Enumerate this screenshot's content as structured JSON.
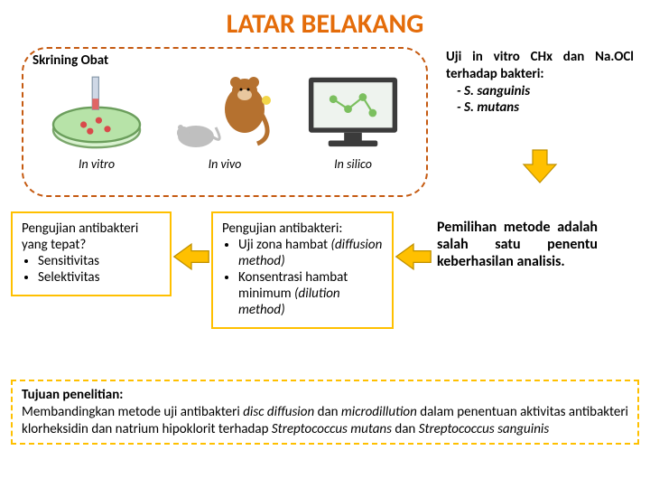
{
  "colors": {
    "title": "#e46c0a",
    "dash_border": "#c55a11",
    "yellow_border": "#ffc000",
    "arrow_fill": "#ffc000",
    "arrow_stroke": "#bf9000",
    "text": "#000000",
    "bg": "#ffffff"
  },
  "fonts": {
    "title_size": 30,
    "body_size": 15,
    "caption_size": 14
  },
  "title": "LATAR BELAKANG",
  "screening": {
    "label": "Skrining Obat",
    "items": [
      {
        "caption": "In vitro",
        "icon": "petri"
      },
      {
        "caption": "In vivo",
        "icon": "animals"
      },
      {
        "caption": "In silico",
        "icon": "computer"
      }
    ]
  },
  "uji": {
    "heading_pre": "Uji in vitro CHx dan Na.OCl terhadap bakteri:",
    "species": [
      "S. sanguinis",
      "S. mutans"
    ]
  },
  "box_left": {
    "heading": "Pengujian antibakteri yang tepat?",
    "bullets": [
      "Sensitivitas",
      "Selektivitas"
    ]
  },
  "box_mid": {
    "heading": "Pengujian antibakteri:",
    "bullets": [
      {
        "text": "Uji zona hambat",
        "paren": "(diffusion method)"
      },
      {
        "text": "Konsentrasi hambat minimum",
        "paren": "(dilution method)"
      }
    ]
  },
  "box_right": {
    "line1": "Pemilihan metode adalah salah satu ",
    "bold": "penentu keberhasilan ",
    "line2": "analisis."
  },
  "bottom": {
    "heading": "Tujuan penelitian:",
    "body_parts": [
      {
        "t": "Membandingkan metode uji antibakteri "
      },
      {
        "t": "disc diffusion",
        "i": true
      },
      {
        "t": " dan "
      },
      {
        "t": "microdillution",
        "i": true
      },
      {
        "t": " dalam penentuan aktivitas antibakteri klorheksidin dan natrium hipoklorit terhadap "
      },
      {
        "t": "Streptococcus mutans",
        "i": true
      },
      {
        "t": " dan "
      },
      {
        "t": "Streptococcus sanguinis",
        "i": true
      }
    ]
  }
}
